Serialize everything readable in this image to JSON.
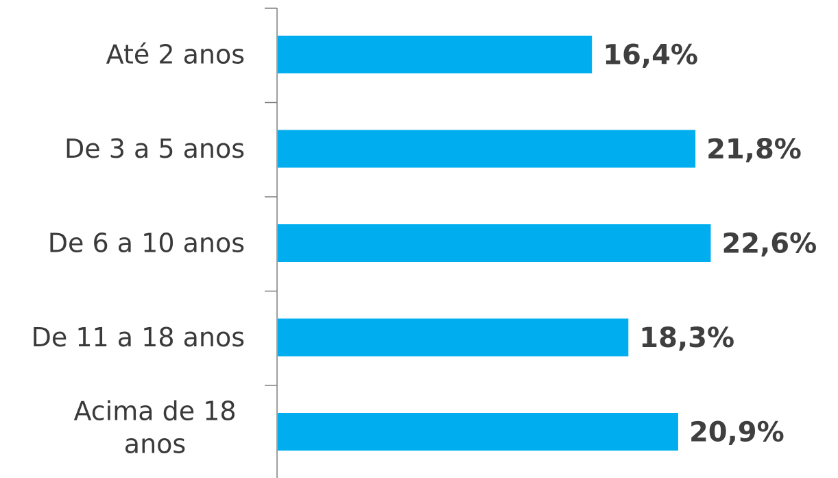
{
  "chart_data": {
    "type": "bar",
    "orientation": "horizontal",
    "categories": [
      "Até 2 anos",
      "De 3 a 5 anos",
      "De 6 a 10 anos",
      "De 11 a 18 anos",
      "Acima de 18 anos"
    ],
    "category_lines": [
      [
        "Até 2 anos"
      ],
      [
        "De 3 a 5 anos"
      ],
      [
        "De 6 a 10 anos"
      ],
      [
        "De 11 a 18 anos"
      ],
      [
        "Acima de 18",
        "anos"
      ]
    ],
    "values": [
      16.4,
      21.8,
      22.6,
      18.3,
      20.9
    ],
    "value_labels": [
      "16,4%",
      "21,8%",
      "22,6%",
      "18,3%",
      "20,9%"
    ],
    "bar_color": "#00AEEF",
    "axis_color": "#7f7f7f",
    "grid": false,
    "legend": "none"
  }
}
